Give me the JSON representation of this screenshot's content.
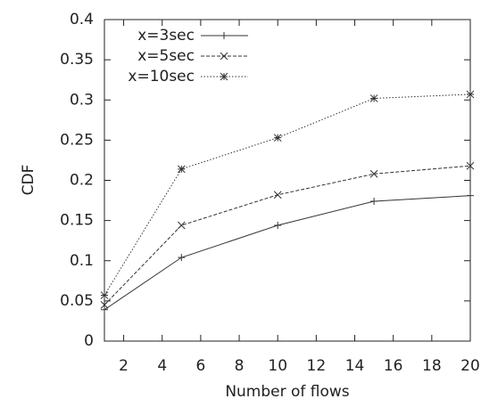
{
  "chart_data": {
    "type": "line",
    "x_label": "Number of flows",
    "y_label": "CDF",
    "x": [
      1,
      5,
      10,
      15,
      20
    ],
    "series": [
      {
        "name": "x=3sec",
        "color": "#333333",
        "dash": "none",
        "marker": "plus",
        "values": [
          0.039,
          0.104,
          0.144,
          0.174,
          0.181
        ]
      },
      {
        "name": "x=5sec",
        "color": "#333333",
        "dash": "4 2",
        "marker": "cross",
        "values": [
          0.045,
          0.144,
          0.182,
          0.208,
          0.218
        ]
      },
      {
        "name": "x=10sec",
        "color": "#333333",
        "dash": "1.5 2",
        "marker": "star",
        "values": [
          0.057,
          0.214,
          0.253,
          0.302,
          0.307
        ]
      }
    ],
    "xlim": [
      1,
      20
    ],
    "xticks": [
      2,
      4,
      6,
      8,
      10,
      12,
      14,
      16,
      18,
      20
    ],
    "ylim": [
      0,
      0.4
    ],
    "yticks": [
      0,
      0.05,
      0.1,
      0.15,
      0.2,
      0.25,
      0.3,
      0.35,
      0.4
    ],
    "legend": "top-left"
  }
}
